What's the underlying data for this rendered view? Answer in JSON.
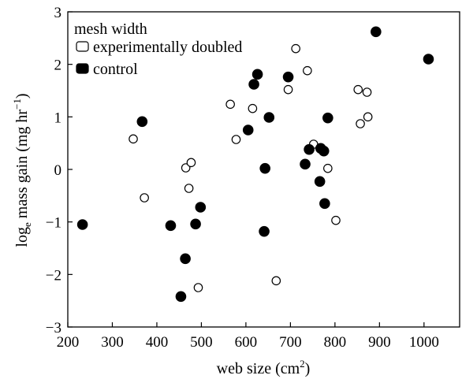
{
  "chart_data": {
    "type": "scatter",
    "title": "",
    "xlabel": "web size (cm",
    "xlabel_sup": "2",
    "xlabel_end": ")",
    "ylabel": "log",
    "ylabel_sub": "e",
    "ylabel_mid": " mass gain (mg hr",
    "ylabel_sup": "−1",
    "ylabel_end": ")",
    "xlim": [
      200,
      1080
    ],
    "ylim": [
      -3,
      3
    ],
    "x_ticks": [
      "200",
      "300",
      "400",
      "500",
      "600",
      "700",
      "800",
      "900",
      "1000"
    ],
    "y_ticks": [
      "−3",
      "−2",
      "−1",
      "0",
      "1",
      "2",
      "3"
    ],
    "grid": false,
    "legend": {
      "title": "mesh width",
      "position": "top-left",
      "items": [
        "experimentally doubled",
        "control"
      ]
    },
    "series": [
      {
        "name": "experimentally doubled",
        "marker": "open-circle",
        "points": [
          [
            347,
            0.58
          ],
          [
            372,
            -0.54
          ],
          [
            465,
            0.03
          ],
          [
            472,
            -0.36
          ],
          [
            477,
            0.13
          ],
          [
            493,
            -2.25
          ],
          [
            565,
            1.24
          ],
          [
            578,
            0.57
          ],
          [
            615,
            1.16
          ],
          [
            668,
            -2.12
          ],
          [
            695,
            1.52
          ],
          [
            712,
            2.3
          ],
          [
            738,
            1.88
          ],
          [
            752,
            0.48
          ],
          [
            784,
            0.02
          ],
          [
            802,
            -0.97
          ],
          [
            852,
            1.52
          ],
          [
            857,
            0.87
          ],
          [
            872,
            1.47
          ],
          [
            874,
            1.0
          ]
        ]
      },
      {
        "name": "control",
        "marker": "filled-circle",
        "points": [
          [
            233,
            -1.05
          ],
          [
            367,
            0.91
          ],
          [
            431,
            -1.07
          ],
          [
            454,
            -2.42
          ],
          [
            464,
            -1.7
          ],
          [
            487,
            -1.04
          ],
          [
            498,
            -0.72
          ],
          [
            605,
            0.75
          ],
          [
            618,
            1.62
          ],
          [
            626,
            1.81
          ],
          [
            641,
            -1.18
          ],
          [
            643,
            0.02
          ],
          [
            652,
            0.99
          ],
          [
            695,
            1.76
          ],
          [
            733,
            0.1
          ],
          [
            742,
            0.38
          ],
          [
            766,
            -0.23
          ],
          [
            768,
            0.4
          ],
          [
            775,
            0.35
          ],
          [
            777,
            -0.65
          ],
          [
            784,
            0.98
          ],
          [
            892,
            2.62
          ],
          [
            1010,
            2.1
          ]
        ]
      }
    ]
  }
}
